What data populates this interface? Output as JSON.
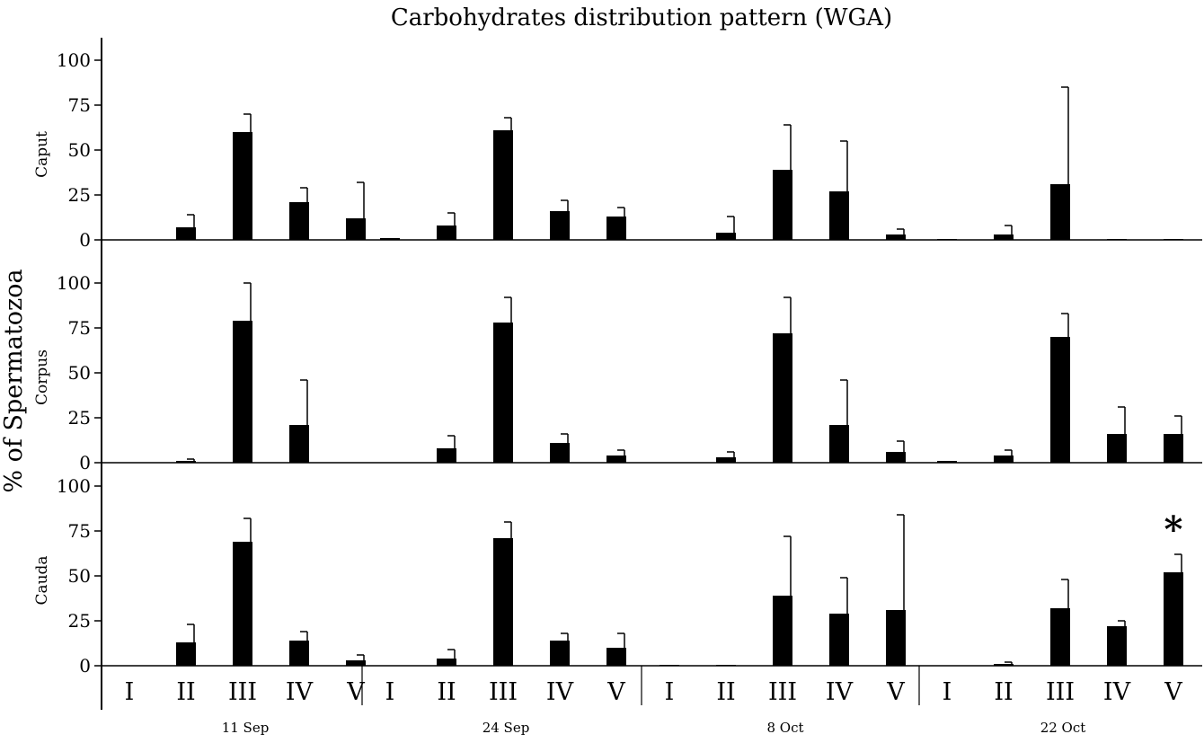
{
  "chart_data": {
    "type": "bar",
    "title": "Carbohydrates distribution pattern (WGA)",
    "ylabel": "% of Spermatozoa",
    "ylim": [
      0,
      100
    ],
    "yticks": [
      0,
      25,
      50,
      75,
      100
    ],
    "categories": [
      "I",
      "II",
      "III",
      "IV",
      "V"
    ],
    "groups": [
      "11 Sep",
      "24 Sep",
      "8 Oct",
      "22 Oct"
    ],
    "bar_color": "#000000",
    "grid": false,
    "legend": "none",
    "panels": [
      {
        "name": "Caput",
        "values": [
          [
            0,
            7,
            60,
            21,
            12
          ],
          [
            1,
            8,
            61,
            16,
            13
          ],
          [
            0,
            4,
            39,
            27,
            3
          ],
          [
            0.5,
            3,
            31,
            0.5,
            0.5
          ]
        ],
        "errors": [
          [
            0,
            7,
            10,
            8,
            20
          ],
          [
            0,
            7,
            7,
            6,
            5
          ],
          [
            0,
            9,
            25,
            28,
            3
          ],
          [
            0,
            5,
            54,
            0,
            0
          ]
        ]
      },
      {
        "name": "Corpus",
        "values": [
          [
            0,
            1,
            79,
            21,
            0
          ],
          [
            0,
            8,
            78,
            11,
            4
          ],
          [
            0,
            3,
            72,
            21,
            6
          ],
          [
            1,
            4,
            70,
            16,
            16
          ]
        ],
        "errors": [
          [
            0,
            1,
            21,
            25,
            0
          ],
          [
            0,
            7,
            14,
            5,
            3
          ],
          [
            0,
            3,
            20,
            25,
            6
          ],
          [
            0,
            3,
            13,
            15,
            10
          ]
        ]
      },
      {
        "name": "Cauda",
        "values": [
          [
            0,
            13,
            69,
            14,
            3
          ],
          [
            0,
            4,
            71,
            14,
            10
          ],
          [
            0.5,
            0.5,
            39,
            29,
            31
          ],
          [
            0,
            1,
            32,
            22,
            52
          ]
        ],
        "errors": [
          [
            0,
            10,
            13,
            5,
            3
          ],
          [
            0,
            5,
            9,
            4,
            8
          ],
          [
            0,
            0,
            33,
            20,
            53
          ],
          [
            0,
            1,
            16,
            3,
            10
          ]
        ],
        "annotations": [
          {
            "group": "22 Oct",
            "category": "V",
            "text": "*"
          }
        ]
      }
    ]
  }
}
